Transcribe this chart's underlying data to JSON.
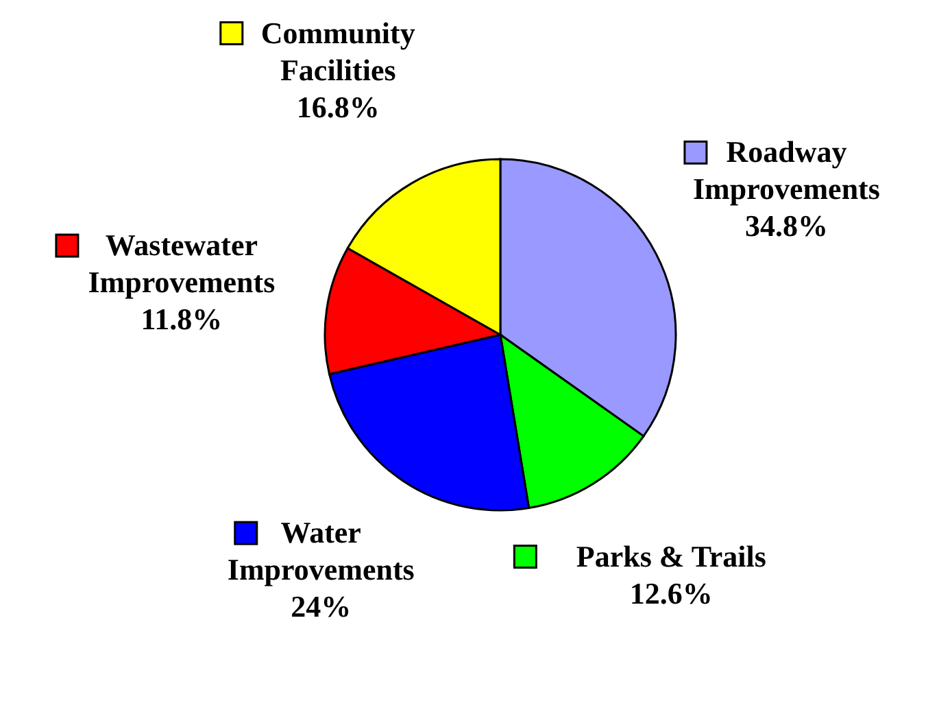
{
  "chart_data": {
    "type": "pie",
    "categories": [
      "Roadway Improvements",
      "Parks & Trails",
      "Water Improvements",
      "Wastewater Improvements",
      "Community Facilities"
    ],
    "values": [
      34.8,
      12.6,
      24,
      11.8,
      16.8
    ],
    "colors": [
      "#9999ff",
      "#00ff00",
      "#0000ff",
      "#ff0000",
      "#ffff00"
    ],
    "value_labels": [
      "34.8%",
      "12.6%",
      "24%",
      "11.8%",
      "16.8%"
    ],
    "legend": "top left"
  }
}
